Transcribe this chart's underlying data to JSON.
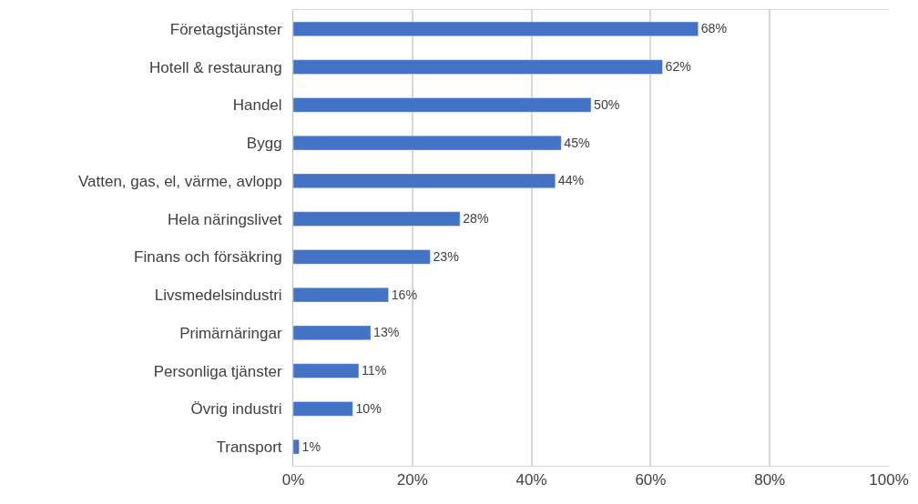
{
  "chart_data": {
    "type": "bar",
    "orientation": "horizontal",
    "categories": [
      "Företagstjänster",
      "Hotell & restaurang",
      "Handel",
      "Bygg",
      "Vatten, gas, el, värme, avlopp",
      "Hela näringslivet",
      "Finans och försäkring",
      "Livsmedelsindustri",
      "Primärnäringar",
      "Personliga tjänster",
      "Övrig industri",
      "Transport"
    ],
    "values": [
      68,
      62,
      50,
      45,
      44,
      28,
      23,
      16,
      13,
      11,
      10,
      1
    ],
    "value_labels": [
      "68%",
      "62%",
      "50%",
      "45%",
      "44%",
      "28%",
      "23%",
      "16%",
      "13%",
      "11%",
      "10%",
      "1%"
    ],
    "color": "#4472c4",
    "xlim": [
      0,
      100
    ],
    "xticks": [
      {
        "value": 0,
        "label": "0%"
      },
      {
        "value": 20,
        "label": "20%"
      },
      {
        "value": 40,
        "label": "40%"
      },
      {
        "value": 60,
        "label": "60%"
      },
      {
        "value": 80,
        "label": "80%"
      },
      {
        "value": 100,
        "label": "100%"
      }
    ],
    "grid": "x"
  }
}
